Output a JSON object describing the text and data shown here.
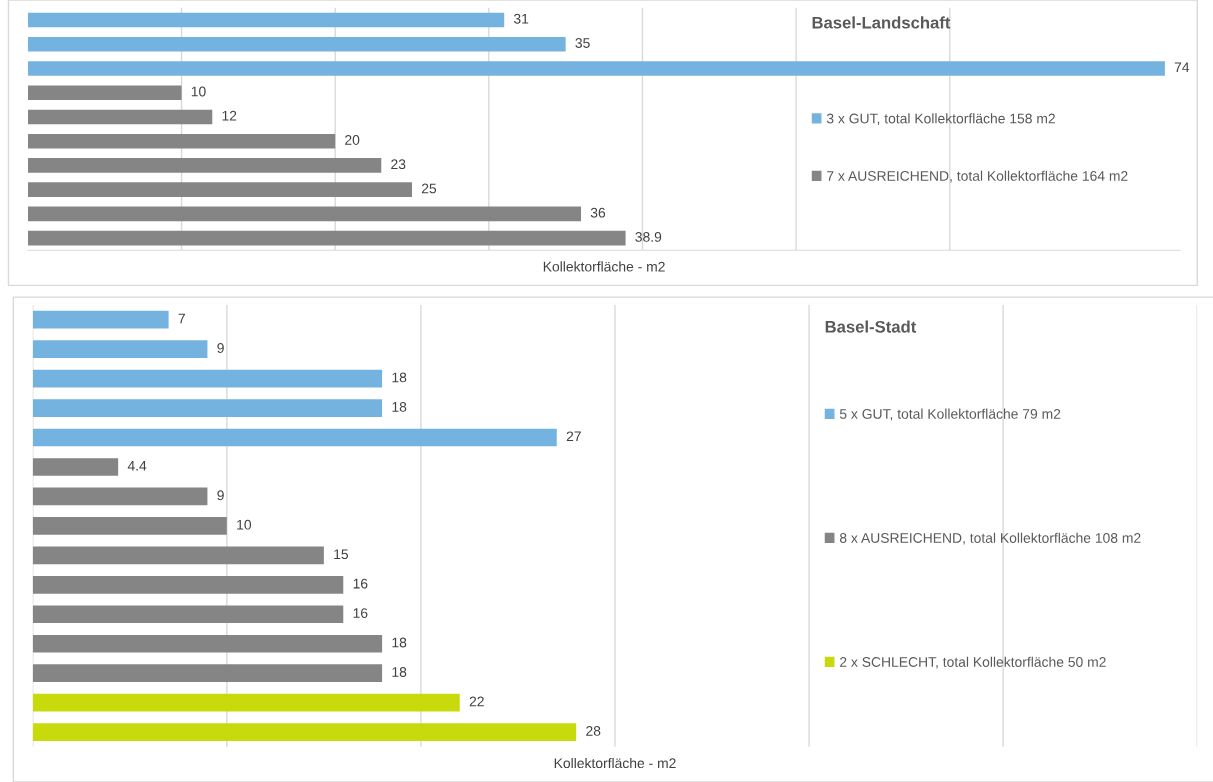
{
  "chart_data": [
    {
      "type": "bar",
      "orientation": "horizontal",
      "stacked": true,
      "title": "Basel-Landschaft",
      "xlabel": "Kollektorfläche - m2",
      "categories": [
        null,
        null,
        null,
        null,
        null,
        null,
        null,
        null,
        null,
        null
      ],
      "series": [
        {
          "name": "3 x GUT, total Kollektorfläche 158 m2",
          "color": "#74b3e0",
          "values": [
            31,
            35,
            74,
            null,
            null,
            null,
            null,
            null,
            null,
            null
          ]
        },
        {
          "name": "7 x AUSREICHEND, total Kollektorfläche 164 m2",
          "color": "#858585",
          "values": [
            null,
            null,
            null,
            10,
            12,
            20,
            23,
            25,
            36,
            38.9
          ]
        }
      ],
      "xlim": [
        0,
        75
      ],
      "xticks": [
        {
          "value": 10,
          "label": null
        },
        {
          "value": 20,
          "label": null
        },
        {
          "value": 30,
          "label": null
        },
        {
          "value": 40,
          "label": null
        },
        {
          "value": 50,
          "label": null
        },
        {
          "value": 60,
          "label": null
        }
      ],
      "grid": "x",
      "tick_labels": false,
      "data_labels": true,
      "legend": "right"
    },
    {
      "type": "bar",
      "orientation": "horizontal",
      "stacked": true,
      "title": "Basel-Stadt",
      "xlabel": "Kollektorfläche - m2",
      "categories": [
        null,
        null,
        null,
        null,
        null,
        null,
        null,
        null,
        null,
        null,
        null,
        null,
        null,
        null,
        null
      ],
      "series": [
        {
          "name": "5 x GUT, total Kollektorfläche 79 m2",
          "color": "#74b3e0",
          "values": [
            7,
            9,
            18,
            18,
            27,
            null,
            null,
            null,
            null,
            null,
            null,
            null,
            null,
            null,
            null
          ]
        },
        {
          "name": "8 x AUSREICHEND, total Kollektorfläche 108 m2",
          "color": "#858585",
          "values": [
            null,
            null,
            null,
            null,
            null,
            4.4,
            9,
            10,
            15,
            16,
            16,
            18,
            18,
            null,
            null
          ]
        },
        {
          "name": "2 x SCHLECHT, total Kollektorfläche 50 m2",
          "color": "#c8d90c",
          "values": [
            null,
            null,
            null,
            null,
            null,
            null,
            null,
            null,
            null,
            null,
            null,
            null,
            null,
            22,
            28
          ]
        }
      ],
      "xlim": [
        0,
        60
      ],
      "xticks": [
        {
          "value": 0,
          "label": null
        },
        {
          "value": 10,
          "label": null
        },
        {
          "value": 20,
          "label": null
        },
        {
          "value": 30,
          "label": null
        },
        {
          "value": 40,
          "label": null
        },
        {
          "value": 50,
          "label": null
        },
        {
          "value": 60,
          "label": null
        }
      ],
      "grid": "x",
      "tick_labels": false,
      "data_labels": true,
      "legend": "right"
    }
  ]
}
